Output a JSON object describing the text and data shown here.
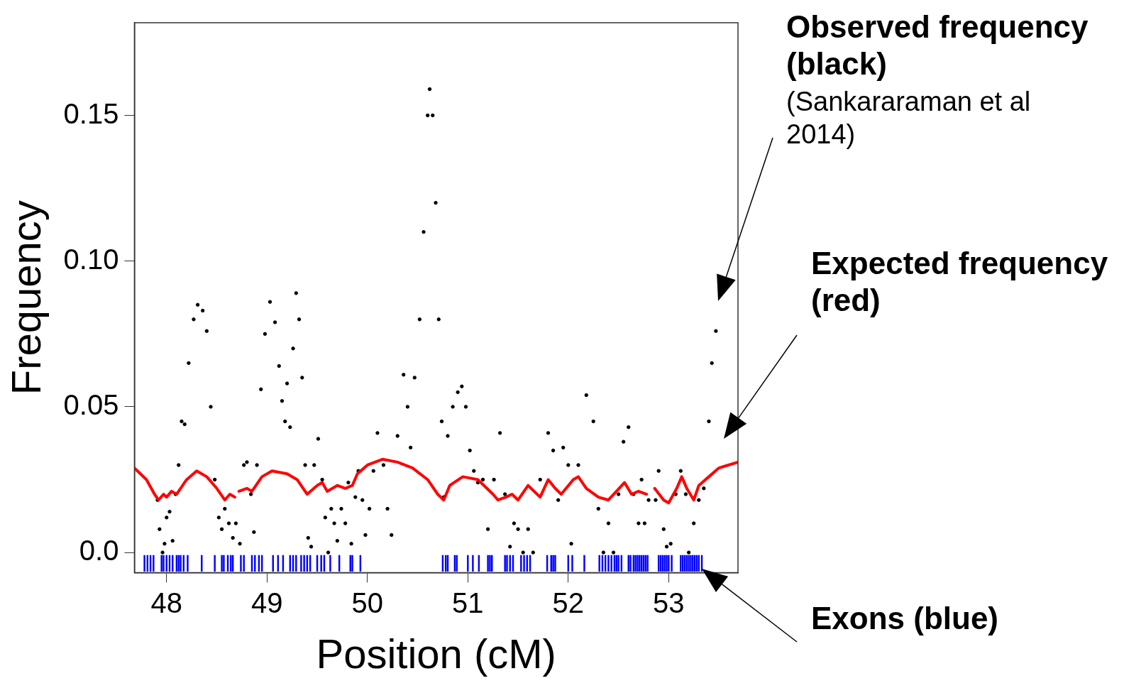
{
  "chart_data": {
    "type": "scatter",
    "xlabel": "Position (cM)",
    "ylabel": "Frequency",
    "xlim": [
      47.68,
      53.69
    ],
    "ylim": [
      -0.0069,
      0.1818
    ],
    "xticks": [
      48,
      49,
      50,
      51,
      52,
      53
    ],
    "yticks": [
      {
        "value": 0,
        "label": "0.0"
      },
      0.05,
      {
        "value": 0.1,
        "label": "0.10"
      },
      0.15
    ],
    "grid": false,
    "legend": false,
    "marker": "circle",
    "series": [
      {
        "color": "#000000",
        "x": [
          47.91,
          47.93,
          47.96,
          47.98,
          48.0,
          48.03,
          48.06,
          48.09,
          48.12,
          48.15,
          48.18,
          48.22,
          48.27,
          48.31,
          48.36,
          48.4,
          48.44,
          48.48,
          48.52,
          48.55,
          48.58,
          48.62,
          48.66,
          48.69,
          48.73,
          48.77,
          48.8,
          48.84,
          48.87,
          48.9,
          48.94,
          48.98,
          49.03,
          49.08,
          49.12,
          49.15,
          49.18,
          49.2,
          49.23,
          49.26,
          49.29,
          49.32,
          49.35,
          49.38,
          49.41,
          49.44,
          49.47,
          49.51,
          49.55,
          49.58,
          49.61,
          49.64,
          49.67,
          49.7,
          49.74,
          49.78,
          49.81,
          49.84,
          49.88,
          49.91,
          49.95,
          49.98,
          50.02,
          50.06,
          50.1,
          50.16,
          50.2,
          50.24,
          50.3,
          50.36,
          50.4,
          50.43,
          50.47,
          50.52,
          50.56,
          50.6,
          50.62,
          50.65,
          50.68,
          50.71,
          50.74,
          50.76,
          50.8,
          50.85,
          50.9,
          50.94,
          50.98,
          51.02,
          51.06,
          51.1,
          51.15,
          51.2,
          51.26,
          51.32,
          51.37,
          51.42,
          51.46,
          51.5,
          51.55,
          51.6,
          51.65,
          51.72,
          51.8,
          51.85,
          51.9,
          51.95,
          52.0,
          52.03,
          52.1,
          52.18,
          52.25,
          52.3,
          52.35,
          52.4,
          52.45,
          52.5,
          52.55,
          52.6,
          52.65,
          52.7,
          52.73,
          52.76,
          52.8,
          52.87,
          52.9,
          52.95,
          52.98,
          53.02,
          53.07,
          53.12,
          53.17,
          53.2,
          53.25,
          53.3,
          53.35,
          53.4,
          53.43,
          53.47
        ],
        "values": [
          0.018,
          0.008,
          0.0,
          0.003,
          0.012,
          0.014,
          0.004,
          0.02,
          0.03,
          0.045,
          0.044,
          0.065,
          0.08,
          0.085,
          0.083,
          0.076,
          0.05,
          0.025,
          0.012,
          0.008,
          0.015,
          0.01,
          0.005,
          0.01,
          0.003,
          0.03,
          0.031,
          0.02,
          0.007,
          0.03,
          0.056,
          0.075,
          0.086,
          0.079,
          0.064,
          0.052,
          0.045,
          0.058,
          0.043,
          0.07,
          0.089,
          0.08,
          0.06,
          0.03,
          0.005,
          0.002,
          0.03,
          0.039,
          0.025,
          0.012,
          0.0,
          0.015,
          0.01,
          0.004,
          0.015,
          0.01,
          0.024,
          0.003,
          0.019,
          0.028,
          0.018,
          0.006,
          0.015,
          0.028,
          0.041,
          0.03,
          0.015,
          0.006,
          0.04,
          0.061,
          0.05,
          0.036,
          0.06,
          0.08,
          0.11,
          0.15,
          0.159,
          0.15,
          0.12,
          0.08,
          0.045,
          0.019,
          0.04,
          0.05,
          0.055,
          0.057,
          0.05,
          0.035,
          0.028,
          0.024,
          0.025,
          0.008,
          0.025,
          0.041,
          0.02,
          0.002,
          0.01,
          0.008,
          0.0,
          0.008,
          0.0,
          0.025,
          0.041,
          0.035,
          0.018,
          0.036,
          0.03,
          0.003,
          0.03,
          0.054,
          0.045,
          0.015,
          0.0,
          0.01,
          0.0,
          0.02,
          0.038,
          0.043,
          0.02,
          0.01,
          0.025,
          0.01,
          0.018,
          0.018,
          0.028,
          0.008,
          0.002,
          0.003,
          0.02,
          0.028,
          0.02,
          0.0,
          0.01,
          0.018,
          0.022,
          0.045,
          0.065,
          0.076
        ]
      },
      {
        "type": "line",
        "marker": "none",
        "color": "#ff0000",
        "x": [
          47.68,
          47.8,
          47.88,
          47.92,
          47.97,
          48.0,
          48.05,
          48.1,
          48.2,
          48.3,
          48.4,
          48.5,
          48.58,
          48.63,
          48.68,
          48.7,
          48.72,
          48.8,
          48.85,
          48.95,
          49.05,
          49.2,
          49.3,
          49.4,
          49.5,
          49.55,
          49.6,
          49.7,
          49.78,
          49.85,
          49.9,
          50.0,
          50.15,
          50.3,
          50.45,
          50.6,
          50.7,
          50.76,
          50.82,
          50.95,
          51.1,
          51.25,
          51.3,
          51.38,
          51.44,
          51.5,
          51.6,
          51.72,
          51.8,
          51.87,
          51.93,
          52.05,
          52.1,
          52.18,
          52.3,
          52.4,
          52.48,
          52.56,
          52.63,
          52.7,
          52.78,
          52.82,
          52.86,
          52.95,
          53.0,
          53.08,
          53.13,
          53.18,
          53.25,
          53.3,
          53.4,
          53.5,
          53.69
        ],
        "values": [
          0.029,
          0.025,
          0.02,
          0.018,
          0.02,
          0.019,
          0.021,
          0.02,
          0.025,
          0.028,
          0.026,
          0.022,
          0.018,
          0.02,
          0.019,
          null,
          0.021,
          0.022,
          0.021,
          0.026,
          0.028,
          0.027,
          0.025,
          0.02,
          0.023,
          0.024,
          0.021,
          0.023,
          0.022,
          0.023,
          0.027,
          0.03,
          0.032,
          0.031,
          0.029,
          0.025,
          0.02,
          0.018,
          0.023,
          0.026,
          0.025,
          0.02,
          0.018,
          0.019,
          0.02,
          0.018,
          0.023,
          0.019,
          0.025,
          0.022,
          0.02,
          0.025,
          0.026,
          0.022,
          0.019,
          0.018,
          0.021,
          0.024,
          0.02,
          0.021,
          0.02,
          null,
          0.022,
          0.018,
          0.017,
          0.022,
          0.026,
          0.022,
          0.018,
          0.023,
          0.026,
          0.029,
          0.031
        ]
      },
      {
        "type": "bar",
        "color": "#0000ff",
        "x": [
          47.78,
          47.81,
          47.84,
          47.87,
          47.95,
          47.97,
          48.0,
          48.03,
          48.06,
          48.1,
          48.12,
          48.14,
          48.17,
          48.21,
          48.35,
          48.48,
          48.55,
          48.57,
          48.61,
          48.64,
          48.66,
          48.74,
          48.77,
          48.85,
          48.88,
          48.92,
          48.95,
          49.06,
          49.11,
          49.16,
          49.23,
          49.26,
          49.29,
          49.34,
          49.37,
          49.4,
          49.43,
          49.5,
          49.54,
          49.57,
          49.63,
          49.72,
          49.83,
          49.85,
          49.93,
          50.75,
          50.78,
          50.8,
          50.87,
          50.89,
          51.0,
          51.05,
          51.11,
          51.2,
          51.22,
          51.24,
          51.37,
          51.39,
          51.42,
          51.45,
          51.53,
          51.56,
          51.59,
          51.62,
          51.79,
          51.83,
          51.85,
          51.87,
          52.0,
          52.04,
          52.16,
          52.31,
          52.34,
          52.37,
          52.4,
          52.43,
          52.46,
          52.48,
          52.5,
          52.53,
          52.6,
          52.62,
          52.65,
          52.67,
          52.69,
          52.71,
          52.73,
          52.75,
          52.77,
          52.79,
          52.9,
          52.92,
          52.94,
          52.96,
          52.98,
          53.0,
          53.03,
          53.12,
          53.14,
          53.16,
          53.18,
          53.2,
          53.22,
          53.24,
          53.26,
          53.28,
          53.3,
          53.33
        ],
        "base": [
          -0.0065,
          -0.0065,
          -0.0065,
          -0.0065,
          -0.0065,
          -0.0065,
          -0.0065,
          -0.0065,
          -0.0065,
          -0.0065,
          -0.0065,
          -0.0065,
          -0.0065,
          -0.0065,
          -0.0065,
          -0.0065,
          -0.0065,
          -0.0065,
          -0.0065,
          -0.0065,
          -0.0065,
          -0.0065,
          -0.0065,
          -0.0065,
          -0.0065,
          -0.0065,
          -0.0065,
          -0.0065,
          -0.0065,
          -0.0065,
          -0.0065,
          -0.0065,
          -0.0065,
          -0.0065,
          -0.0065,
          -0.0065,
          -0.0065,
          -0.0065,
          -0.0065,
          -0.0065,
          -0.0065,
          -0.0065,
          -0.0065,
          -0.0065,
          -0.0065,
          -0.0065,
          -0.0065,
          -0.0065,
          -0.0065,
          -0.0065,
          -0.0065,
          -0.0065,
          -0.0065,
          -0.0065,
          -0.0065,
          -0.0065,
          -0.0065,
          -0.0065,
          -0.0065,
          -0.0065,
          -0.0065,
          -0.0065,
          -0.0065,
          -0.0065,
          -0.0065,
          -0.0065,
          -0.0065,
          -0.0065,
          -0.0065,
          -0.0065,
          -0.0065,
          -0.0065,
          -0.0065,
          -0.0065,
          -0.0065,
          -0.0065,
          -0.0065,
          -0.0065,
          -0.0065,
          -0.0065,
          -0.0065,
          -0.0065,
          -0.0065,
          -0.0065,
          -0.0065,
          -0.0065,
          -0.0065,
          -0.0065,
          -0.0065,
          -0.0065,
          -0.0065,
          -0.0065,
          -0.0065,
          -0.0065,
          -0.0065,
          -0.0065,
          -0.0065,
          -0.0065,
          -0.0065,
          -0.0065,
          -0.0065,
          -0.0065,
          -0.0065,
          -0.0065,
          -0.0065,
          -0.0065,
          -0.0065,
          -0.0065
        ],
        "values": [
          0.0055,
          0.0055,
          0.0055,
          0.0055,
          0.0055,
          0.0055,
          0.0055,
          0.0055,
          0.0055,
          0.0055,
          0.0055,
          0.0055,
          0.0055,
          0.0055,
          0.0055,
          0.0055,
          0.0055,
          0.0055,
          0.0055,
          0.0055,
          0.0055,
          0.0055,
          0.0055,
          0.0055,
          0.0055,
          0.0055,
          0.0055,
          0.0055,
          0.0055,
          0.0055,
          0.0055,
          0.0055,
          0.0055,
          0.0055,
          0.0055,
          0.0055,
          0.0055,
          0.0055,
          0.0055,
          0.0055,
          0.0055,
          0.0055,
          0.0055,
          0.0055,
          0.0055,
          0.0055,
          0.0055,
          0.0055,
          0.0055,
          0.0055,
          0.0055,
          0.0055,
          0.0055,
          0.0055,
          0.0055,
          0.0055,
          0.0055,
          0.0055,
          0.0055,
          0.0055,
          0.0055,
          0.0055,
          0.0055,
          0.0055,
          0.0055,
          0.0055,
          0.0055,
          0.0055,
          0.0055,
          0.0055,
          0.0055,
          0.0055,
          0.0055,
          0.0055,
          0.0055,
          0.0055,
          0.0055,
          0.0055,
          0.0055,
          0.0055,
          0.0055,
          0.0055,
          0.0055,
          0.0055,
          0.0055,
          0.0055,
          0.0055,
          0.0055,
          0.0055,
          0.0055,
          0.0055,
          0.0055,
          0.0055,
          0.0055,
          0.0055,
          0.0055,
          0.0055,
          0.0055,
          0.0055,
          0.0055,
          0.0055,
          0.0055,
          0.0055,
          0.0055,
          0.0055,
          0.0055,
          0.0055,
          0.0055
        ]
      }
    ],
    "annotations": [
      "Observed frequency (black)",
      "(Sankararaman et al 2014)",
      "Expected frequency (red)",
      "Exons (blue)"
    ]
  }
}
